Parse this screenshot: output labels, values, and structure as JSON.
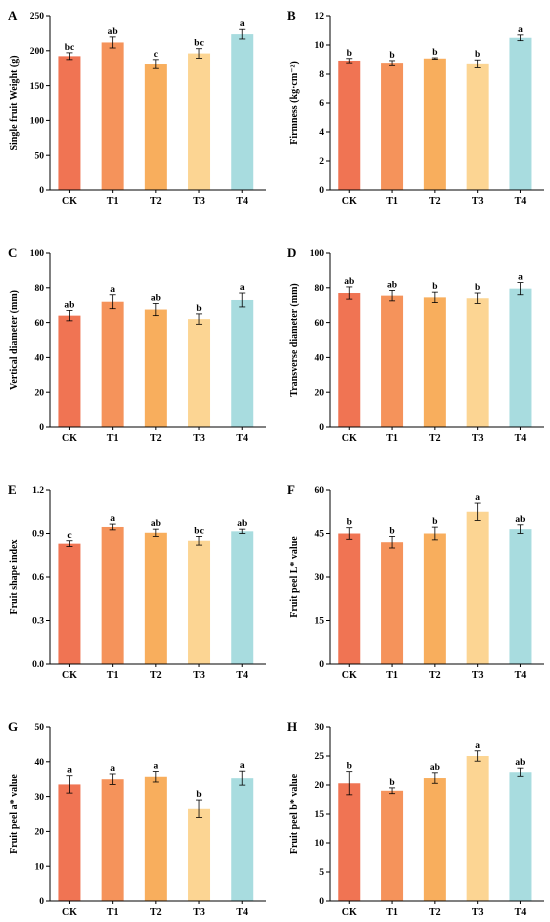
{
  "bar_colors": [
    "#F07453",
    "#F5935B",
    "#F8AE5D",
    "#FCD593",
    "#A8DCDF"
  ],
  "chart_data": [
    {
      "panel": "A",
      "type": "bar",
      "categories": [
        "CK",
        "T1",
        "T2",
        "T3",
        "T4"
      ],
      "values": [
        192,
        212,
        181,
        196,
        224
      ],
      "errors": [
        5,
        8,
        6,
        7,
        7
      ],
      "labels": [
        "bc",
        "ab",
        "c",
        "bc",
        "a"
      ],
      "ylabel": "Single fruit Weight (g)",
      "ylim": [
        0,
        250
      ],
      "yticks": [
        "0",
        "50",
        "100",
        "150",
        "200",
        "250"
      ],
      "grid": false
    },
    {
      "panel": "B",
      "type": "bar",
      "categories": [
        "CK",
        "T1",
        "T2",
        "T3",
        "T4"
      ],
      "values": [
        8.9,
        8.75,
        9.05,
        8.7,
        10.5
      ],
      "errors": [
        0.15,
        0.15,
        0.05,
        0.25,
        0.2
      ],
      "labels": [
        "b",
        "b",
        "b",
        "b",
        "a"
      ],
      "ylabel": "Firmness (kg·cm⁻²)",
      "ylim": [
        0,
        12
      ],
      "yticks": [
        "0",
        "2",
        "4",
        "6",
        "8",
        "10",
        "12"
      ],
      "grid": false
    },
    {
      "panel": "C",
      "type": "bar",
      "categories": [
        "CK",
        "T1",
        "T2",
        "T3",
        "T4"
      ],
      "values": [
        64,
        72,
        67.5,
        62,
        73
      ],
      "errors": [
        3,
        4,
        3.5,
        3,
        4
      ],
      "labels": [
        "ab",
        "a",
        "ab",
        "b",
        "a"
      ],
      "ylabel": "Vertical diameter (mm)",
      "ylim": [
        0,
        100
      ],
      "yticks": [
        "0",
        "20",
        "40",
        "60",
        "80",
        "100"
      ],
      "grid": false
    },
    {
      "panel": "D",
      "type": "bar",
      "categories": [
        "CK",
        "T1",
        "T2",
        "T3",
        "T4"
      ],
      "values": [
        77,
        75.5,
        74.5,
        74,
        79.5
      ],
      "errors": [
        3.5,
        3,
        3,
        3,
        3.5
      ],
      "labels": [
        "ab",
        "ab",
        "b",
        "b",
        "a"
      ],
      "ylabel": "Transverse diameter (mm)",
      "ylim": [
        0,
        100
      ],
      "yticks": [
        "0",
        "20",
        "40",
        "60",
        "80",
        "100"
      ],
      "grid": false
    },
    {
      "panel": "E",
      "type": "bar",
      "categories": [
        "CK",
        "T1",
        "T2",
        "T3",
        "T4"
      ],
      "values": [
        0.83,
        0.945,
        0.905,
        0.85,
        0.915
      ],
      "errors": [
        0.02,
        0.02,
        0.025,
        0.03,
        0.015
      ],
      "labels": [
        "c",
        "a",
        "ab",
        "bc",
        "ab"
      ],
      "ylabel": "Fruit shape index",
      "ylim": [
        0,
        1.2
      ],
      "yticks": [
        "0.0",
        "0.3",
        "0.6",
        "0.9",
        "1.2"
      ],
      "grid": false
    },
    {
      "panel": "F",
      "type": "bar",
      "categories": [
        "CK",
        "T1",
        "T2",
        "T3",
        "T4"
      ],
      "values": [
        45,
        42,
        45,
        52.5,
        46.5
      ],
      "errors": [
        2,
        2,
        2.2,
        3,
        1.5
      ],
      "labels": [
        "b",
        "b",
        "b",
        "a",
        "ab"
      ],
      "ylabel": "Fruit peel L* value",
      "ylim": [
        0,
        60
      ],
      "yticks": [
        "0",
        "15",
        "30",
        "45",
        "60"
      ],
      "grid": false
    },
    {
      "panel": "G",
      "type": "bar",
      "categories": [
        "CK",
        "T1",
        "T2",
        "T3",
        "T4"
      ],
      "values": [
        33.5,
        35,
        35.7,
        26.5,
        35.3
      ],
      "errors": [
        2.5,
        1.5,
        1.5,
        2.5,
        2
      ],
      "labels": [
        "a",
        "a",
        "a",
        "b",
        "a"
      ],
      "ylabel": "Fruit peel a* value",
      "ylim": [
        0,
        50
      ],
      "yticks": [
        "0",
        "10",
        "20",
        "30",
        "40",
        "50"
      ],
      "grid": false
    },
    {
      "panel": "H",
      "type": "bar",
      "categories": [
        "CK",
        "T1",
        "T2",
        "T3",
        "T4"
      ],
      "values": [
        20.3,
        19,
        21.2,
        25,
        22.2
      ],
      "errors": [
        2,
        0.5,
        0.9,
        0.9,
        0.7
      ],
      "labels": [
        "b",
        "b",
        "ab",
        "a",
        "ab"
      ],
      "ylabel": "Fruit peel b* value",
      "ylim": [
        0,
        30
      ],
      "yticks": [
        "0",
        "5",
        "10",
        "15",
        "20",
        "25",
        "30"
      ],
      "grid": false
    }
  ]
}
